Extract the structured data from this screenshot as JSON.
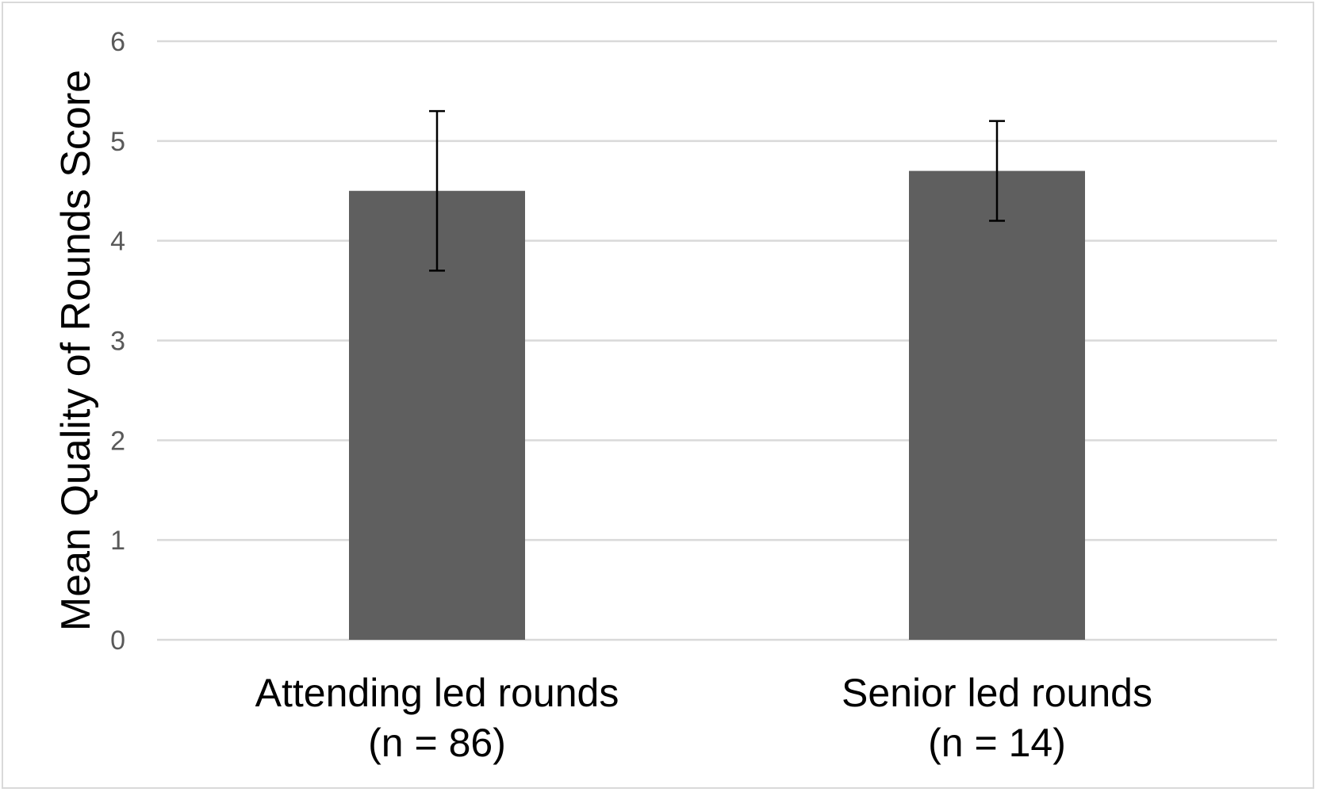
{
  "chart_data": {
    "type": "bar",
    "categories": [
      "Attending led rounds",
      "Senior led rounds"
    ],
    "category_sublabels": [
      "(n = 86)",
      "(n = 14)"
    ],
    "values": [
      4.5,
      4.7
    ],
    "error_bars": [
      {
        "lower": 3.7,
        "upper": 5.3
      },
      {
        "lower": 4.2,
        "upper": 5.2
      }
    ],
    "title": "",
    "xlabel": "",
    "ylabel": "Mean Quality of Rounds Score",
    "ylim": [
      0,
      6
    ],
    "yticks": [
      0,
      1,
      2,
      3,
      4,
      5,
      6
    ],
    "grid": true,
    "legend": "none",
    "bar_color": "#5f5f5f",
    "grid_color": "#d9d9d9"
  }
}
